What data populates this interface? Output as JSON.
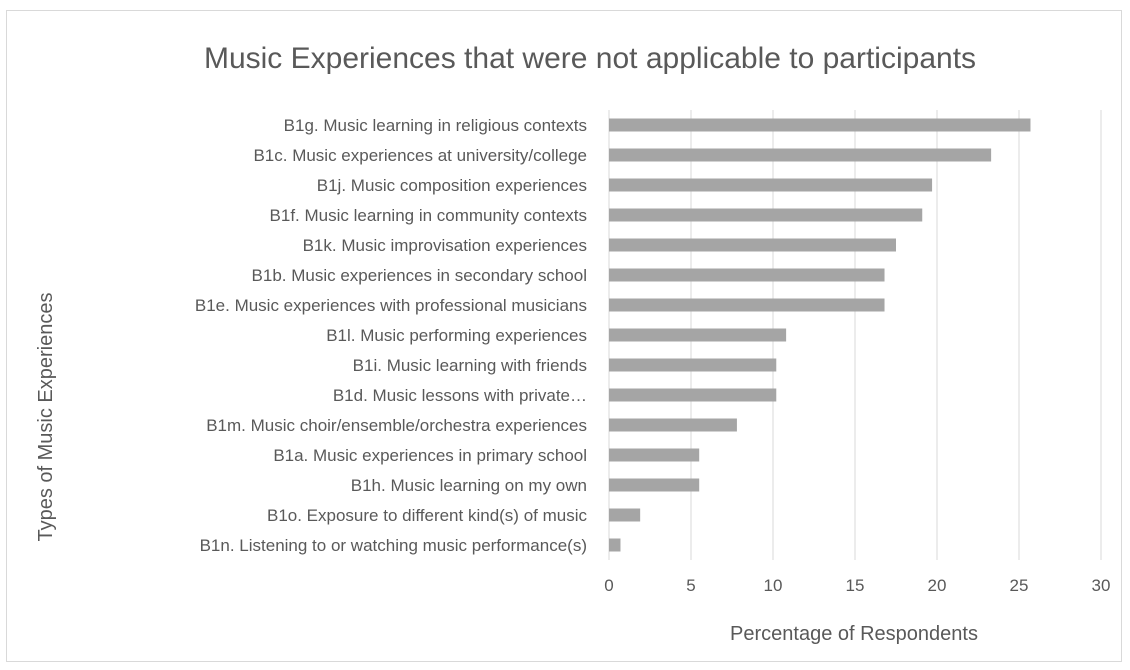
{
  "chart_data": {
    "type": "bar",
    "orientation": "horizontal",
    "title": "Music Experiences that were not applicable to participants",
    "xlabel": "Percentage of Respondents",
    "ylabel": "Types of Music Experiences",
    "xlim": [
      0,
      30
    ],
    "xticks": [
      0,
      5,
      10,
      15,
      20,
      25,
      30
    ],
    "grid": true,
    "legend": "none",
    "bar_color": "#a5a5a5",
    "categories": [
      "B1g. Music learning in religious contexts",
      "B1c. Music experiences at university/college",
      "B1j. Music composition experiences",
      "B1f. Music learning in community contexts",
      "B1k. Music improvisation experiences",
      "B1b. Music experiences in secondary school",
      "B1e. Music experiences with professional musicians",
      "B1l. Music performing experiences",
      "B1i. Music learning with friends",
      "B1d. Music lessons with private…",
      "B1m. Music choir/ensemble/orchestra experiences",
      "B1a. Music experiences in primary school",
      "B1h. Music learning on my own",
      "B1o. Exposure to different kind(s) of music",
      "B1n. Listening to or watching music performance(s)"
    ],
    "values": [
      25.7,
      23.3,
      19.7,
      19.1,
      17.5,
      16.8,
      16.8,
      10.8,
      10.2,
      10.2,
      7.8,
      5.5,
      5.5,
      1.9,
      0.7
    ]
  }
}
